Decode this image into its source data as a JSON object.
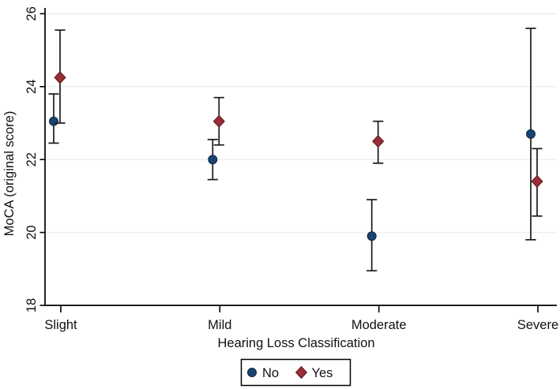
{
  "figure": {
    "background": "#ffffff"
  },
  "chart_data": {
    "type": "scatter",
    "subtype": "point-estimate-with-error-bars",
    "title": "",
    "xlabel": "Hearing Loss Classification",
    "ylabel": "MoCA (original score)",
    "categories": [
      "Slight",
      "Mild",
      "Moderate",
      "Severe"
    ],
    "yticks": [
      18,
      20,
      22,
      24,
      26
    ],
    "ylim": [
      18,
      26
    ],
    "grid": "horizontal-only",
    "gridline_color": "#ededed",
    "axis_color": "#000000",
    "errorbar_color": "#1a1a1a",
    "series": [
      {
        "name": "No",
        "marker": "circle",
        "fill": "#1a4572",
        "stroke": "#0f2a4a",
        "means": [
          23.05,
          22.0,
          19.9,
          22.7
        ],
        "ci_low": [
          22.45,
          21.45,
          18.95,
          19.8
        ],
        "ci_high": [
          23.8,
          22.55,
          20.9,
          25.6
        ]
      },
      {
        "name": "Yes",
        "marker": "diamond",
        "fill": "#9a2e36",
        "stroke": "#611b21",
        "means": [
          24.25,
          23.05,
          22.5,
          21.4
        ],
        "ci_low": [
          23.0,
          22.4,
          21.9,
          20.45
        ],
        "ci_high": [
          25.55,
          23.7,
          23.05,
          22.3
        ]
      }
    ],
    "legend": {
      "position": "bottom-center",
      "bordered": true,
      "entries": [
        "No",
        "Yes"
      ]
    }
  }
}
